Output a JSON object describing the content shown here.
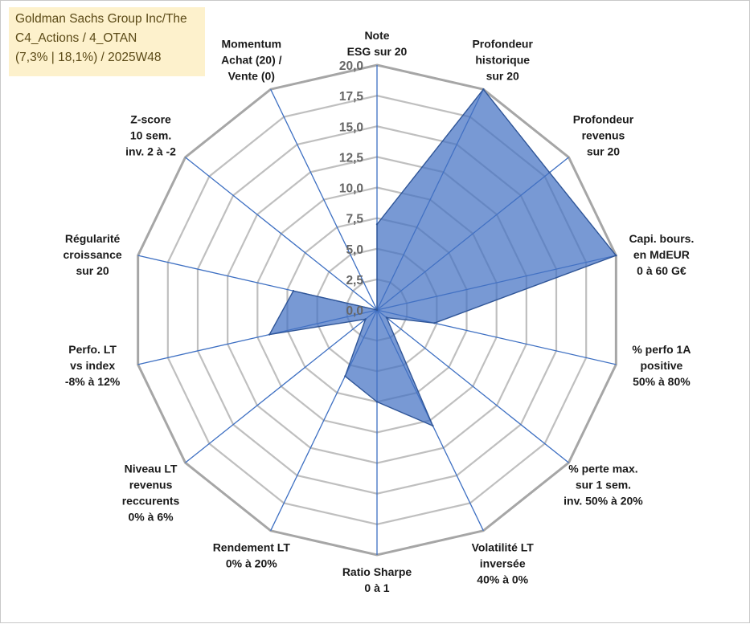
{
  "header": {
    "lines": [
      "Goldman Sachs Group Inc/The",
      "C4_Actions / 4_OTAN",
      "(7,3% | 18,1%) / 2025W48"
    ]
  },
  "colors": {
    "series_fill": "#4472c4",
    "series_stroke": "#2f5597",
    "spoke": "#3d6fc2",
    "ring": "#bfbfbf",
    "ring_outer": "#a6a6a6",
    "title_bg": "#fdf1cc"
  },
  "chart_data": {
    "type": "radar",
    "title": "",
    "grid": true,
    "rlim": [
      0,
      20
    ],
    "tick_values": [
      0,
      2.5,
      5,
      7.5,
      10,
      12.5,
      15,
      17.5,
      20
    ],
    "tick_labels": [
      "0,0",
      "2,5",
      "5,0",
      "7,5",
      "10,0",
      "12,5",
      "15,0",
      "17,5",
      "20,0"
    ],
    "categories": [
      [
        "Note",
        "ESG sur 20"
      ],
      [
        "Profondeur",
        "historique",
        "sur 20"
      ],
      [
        "Profondeur",
        "revenus",
        "sur 20"
      ],
      [
        "Capi. bours.",
        "en MdEUR",
        "0 à 60 G€"
      ],
      [
        "% perfo 1A",
        "positive",
        "50% à 80%"
      ],
      [
        "% perte max.",
        "sur 1 sem.",
        "inv. 50% à 20%"
      ],
      [
        "Volatilité LT",
        "inversée",
        "40% à 0%"
      ],
      [
        "Ratio Sharpe",
        "0 à 1"
      ],
      [
        "Rendement LT",
        "0% à 20%"
      ],
      [
        "Niveau LT",
        "revenus",
        "reccurents",
        "0% à 6%"
      ],
      [
        "Perfo. LT",
        "vs index",
        "-8% à 12%"
      ],
      [
        "Régularité",
        "croissance",
        "sur 20"
      ],
      [
        "Z-score",
        "10 sem.",
        "inv. 2 à -2"
      ],
      [
        "Momentum",
        "Achat (20) /",
        "Vente (0)"
      ]
    ],
    "series": [
      {
        "values": [
          7,
          20,
          18,
          20,
          4.8,
          1,
          10.5,
          7.5,
          6,
          1.2,
          9,
          7,
          0,
          0
        ]
      }
    ]
  }
}
